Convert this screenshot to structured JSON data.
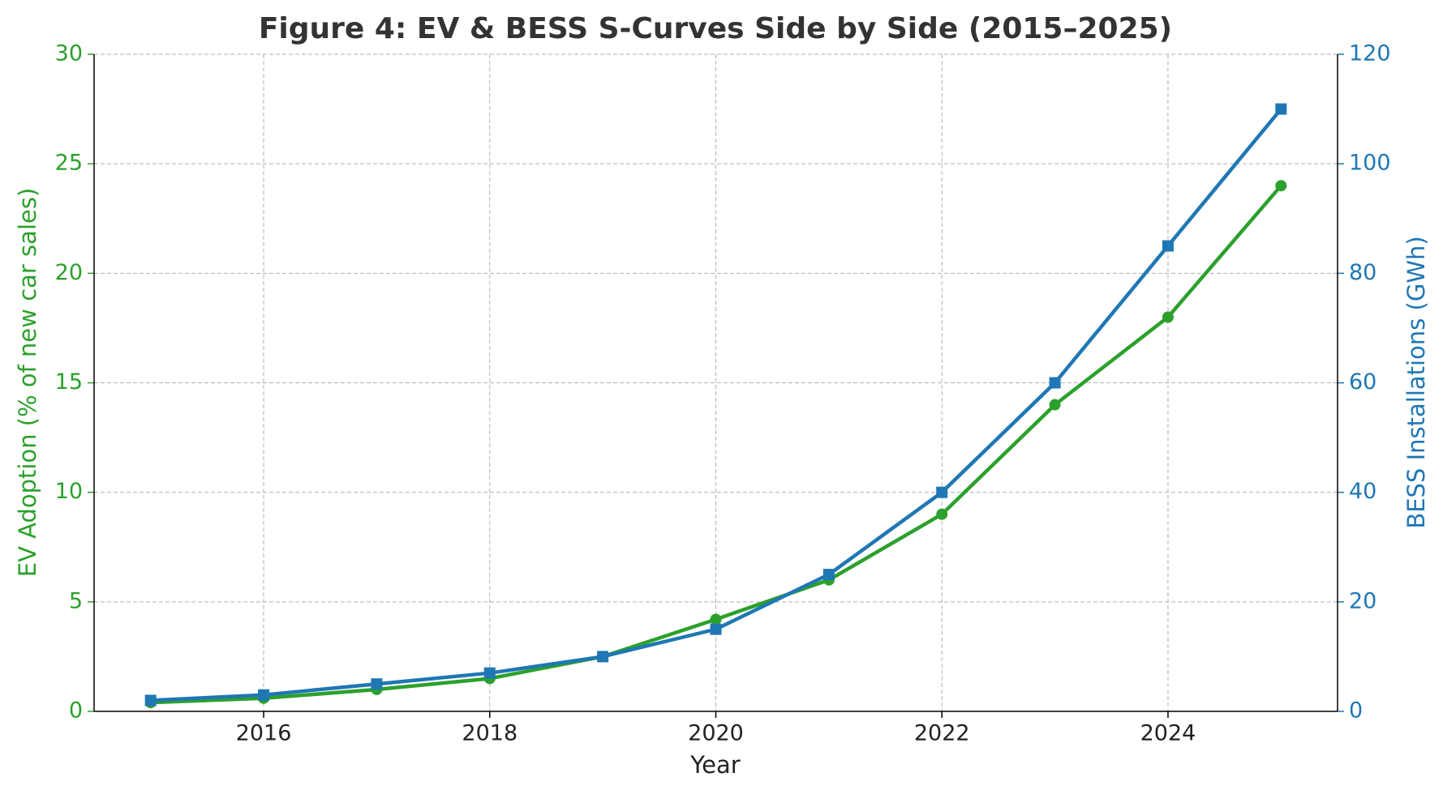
{
  "chart_data": {
    "type": "line",
    "title": "Figure 4: EV & BESS S-Curves Side by Side (2015–2025)",
    "x_label": "Year",
    "y_label": "EV Adoption (% of new car sales)",
    "y2_label": "BESS Installations (GWh)",
    "x": [
      2015,
      2016,
      2017,
      2018,
      2019,
      2020,
      2021,
      2022,
      2023,
      2024,
      2025
    ],
    "series": [
      {
        "name": "EV Adoption (% of new car sales)",
        "color": "#2ca02c",
        "marker": "circle",
        "values": [
          0.4,
          0.6,
          1.0,
          1.5,
          2.5,
          4.2,
          6.0,
          9.0,
          14,
          18,
          24
        ]
      },
      {
        "name": "BESS Installations (GWh)",
        "color": "#1f77b4",
        "marker": "square",
        "axis": "y2",
        "values": [
          2,
          3,
          5,
          7,
          10,
          15,
          25,
          40,
          60,
          85,
          110
        ]
      }
    ],
    "xlim": [
      2014.5,
      2025.5
    ],
    "xticks": [
      2016,
      2018,
      2020,
      2022,
      2024
    ],
    "ylim": [
      0,
      30
    ],
    "yticks": [
      0,
      5,
      10,
      15,
      20,
      25,
      30
    ],
    "y2lim": [
      0,
      120
    ],
    "y2ticks": [
      0,
      20,
      40,
      60,
      80,
      100,
      120
    ],
    "grid": true
  }
}
